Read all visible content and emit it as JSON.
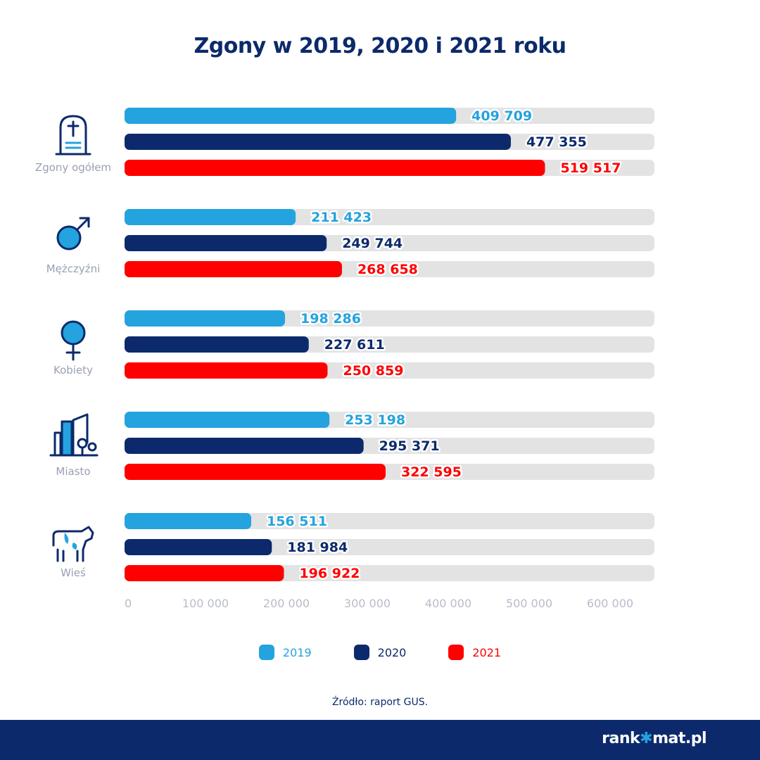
{
  "chart_data": {
    "type": "bar",
    "orientation": "horizontal",
    "title": "Zgony w 2019, 2020 i 2021 roku",
    "categories": [
      "Zgony ogółem",
      "Mężczyźni",
      "Kobiety",
      "Miasto",
      "Wieś"
    ],
    "category_icons": [
      "gravestone-icon",
      "male-symbol-icon",
      "female-symbol-icon",
      "city-icon",
      "cow-icon"
    ],
    "series": [
      {
        "name": "2019",
        "color": "#24a3de",
        "values": [
          409709,
          211423,
          198286,
          253198,
          156511
        ],
        "labels": [
          "409 709",
          "211 423",
          "198 286",
          "253 198",
          "156 511"
        ]
      },
      {
        "name": "2020",
        "color": "#0c2a6b",
        "values": [
          477355,
          249744,
          227611,
          295371,
          181984
        ],
        "labels": [
          "477 355",
          "249 744",
          "227 611",
          "295 371",
          "181 984"
        ]
      },
      {
        "name": "2021",
        "color": "#ff0000",
        "values": [
          519517,
          268658,
          250859,
          322595,
          196922
        ],
        "labels": [
          "519 517",
          "268 658",
          "250 859",
          "322 595",
          "196 922"
        ]
      }
    ],
    "xlim": [
      0,
      600000
    ],
    "xticks": [
      0,
      100000,
      200000,
      300000,
      400000,
      500000,
      600000
    ],
    "xtick_labels": [
      "0",
      "100 000",
      "200 000",
      "300 000",
      "400 000",
      "500 000",
      "600 000"
    ],
    "grid": false,
    "legend": "bottom"
  },
  "source": "Źródło: raport GUS.",
  "brand": {
    "name_left": "rank",
    "name_right": "mat.pl"
  },
  "colors": {
    "track": "#e3e3e3",
    "category_label": "#9aa0b4",
    "icon": "#0c2a6b",
    "icon_accent": "#24a3de",
    "axis_label": "#b8bcc9"
  }
}
